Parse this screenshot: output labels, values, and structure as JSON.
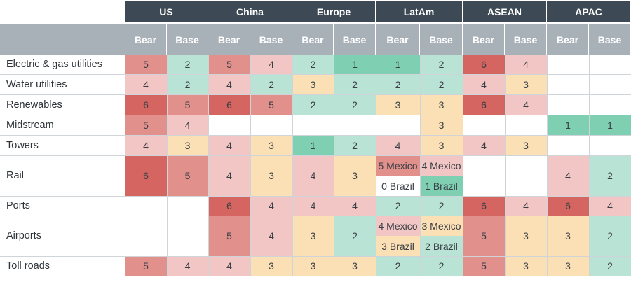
{
  "chart_data": {
    "type": "heatmap",
    "title": "",
    "regions": [
      "US",
      "China",
      "Europe",
      "LatAm",
      "ASEAN",
      "APAC"
    ],
    "scenarios": [
      "Bear",
      "Base"
    ],
    "sectors": [
      "Electric & gas utilities",
      "Water utilities",
      "Renewables",
      "Midstream",
      "Towers",
      "Rail",
      "Ports",
      "Airports",
      "Toll roads"
    ],
    "rows": [
      [
        [
          "5",
          "2"
        ],
        [
          "5",
          "4"
        ],
        [
          "2",
          "1"
        ],
        [
          "1",
          "2"
        ],
        [
          "6",
          "4"
        ],
        [
          "",
          ""
        ]
      ],
      [
        [
          "4",
          "2"
        ],
        [
          "4",
          "2"
        ],
        [
          "3",
          "2"
        ],
        [
          "2",
          "2"
        ],
        [
          "4",
          "3"
        ],
        [
          "",
          ""
        ]
      ],
      [
        [
          "6",
          "5"
        ],
        [
          "6",
          "5"
        ],
        [
          "2",
          "2"
        ],
        [
          "3",
          "3"
        ],
        [
          "6",
          "4"
        ],
        [
          "",
          ""
        ]
      ],
      [
        [
          "5",
          "4"
        ],
        [
          "",
          ""
        ],
        [
          "",
          ""
        ],
        [
          "",
          "3"
        ],
        [
          "",
          ""
        ],
        [
          "1",
          "1"
        ]
      ],
      [
        [
          "4",
          "3"
        ],
        [
          "4",
          "3"
        ],
        [
          "1",
          "2"
        ],
        [
          "4",
          "3"
        ],
        [
          "4",
          "3"
        ],
        [
          "",
          ""
        ]
      ],
      [
        [
          "6",
          "5"
        ],
        [
          "4",
          "3"
        ],
        [
          "4",
          "3"
        ],
        [
          [
            "5 Mexico",
            "0 Brazil"
          ],
          [
            "4 Mexico",
            "1 Brazil"
          ]
        ],
        [
          "",
          ""
        ],
        [
          "4",
          "2"
        ]
      ],
      [
        [
          "",
          ""
        ],
        [
          "6",
          "4"
        ],
        [
          "4",
          "4"
        ],
        [
          "2",
          "2"
        ],
        [
          "6",
          "4"
        ],
        [
          "6",
          "4"
        ]
      ],
      [
        [
          "",
          ""
        ],
        [
          "5",
          "4"
        ],
        [
          "3",
          "2"
        ],
        [
          [
            "4 Mexico",
            "3 Brazil"
          ],
          [
            "3 Mexico",
            "2 Brazil"
          ]
        ],
        [
          "5",
          "3"
        ],
        [
          "3",
          "2"
        ]
      ],
      [
        [
          "5",
          "4"
        ],
        [
          "4",
          "3"
        ],
        [
          "3",
          "3"
        ],
        [
          "2",
          "2"
        ],
        [
          "5",
          "3"
        ],
        [
          "3",
          "2"
        ]
      ]
    ],
    "color_scale": {
      "1": "#7fcfb2",
      "2": "#b8e3d5",
      "3": "#fbdfb5",
      "4": "#f2c6c4",
      "5": "#e1908c",
      "6": "#d46560"
    }
  }
}
